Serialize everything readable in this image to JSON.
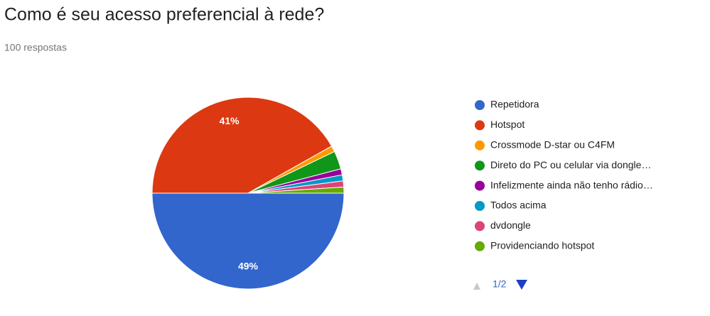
{
  "title": "Como é seu acesso preferencial à rede?",
  "subtitle": "100 respostas",
  "pager": "1/2",
  "chart_data": {
    "type": "pie",
    "categories": [
      "Repetidora",
      "Hotspot",
      "Crossmode D-star ou C4FM",
      "Direto do PC ou celular via dongle…",
      "Infelizmente ainda não tenho rádio…",
      "Todos acima",
      "dvdongle",
      "Providenciando hotspot"
    ],
    "values": [
      49,
      41,
      1,
      3,
      1,
      1,
      1,
      1
    ],
    "value_labels": [
      "49%",
      "41%",
      null,
      null,
      null,
      null,
      null,
      null
    ],
    "colors": [
      "#3366cc",
      "#dc3912",
      "#ff9900",
      "#109618",
      "#990099",
      "#0099c6",
      "#dd4477",
      "#66aa00"
    ],
    "legend": "right"
  }
}
